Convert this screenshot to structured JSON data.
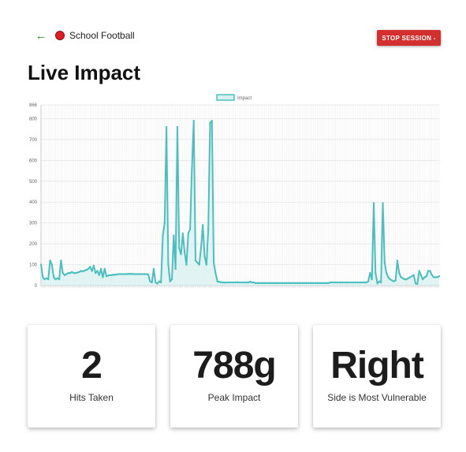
{
  "header": {
    "back_icon": "arrow-left-icon",
    "back_glyph": "←",
    "status_icon": "live-record-dot-icon",
    "session_name": "School Football",
    "stop_label": "STOP SESSION -"
  },
  "page": {
    "title": "Live Impact"
  },
  "colors": {
    "accent": "#4bbfbf",
    "accent_fill": "#d6f0f0",
    "stop": "#d32f2f",
    "back": "#2e8b2e",
    "dot": "#e31b23"
  },
  "chart_data": {
    "type": "line",
    "title": "",
    "xlabel": "",
    "ylabel": "",
    "legend": [
      "Impact"
    ],
    "legend_position": "top-center",
    "ylim": [
      0,
      866
    ],
    "y_ticks": [
      0,
      100,
      200,
      300,
      400,
      500,
      600,
      700,
      800,
      866
    ],
    "grid": true,
    "series": [
      {
        "name": "Impact",
        "values": [
          100,
          40,
          30,
          35,
          30,
          120,
          100,
          40,
          30,
          35,
          30,
          120,
          60,
          50,
          55,
          60,
          60,
          65,
          60,
          60,
          62,
          65,
          70,
          68,
          72,
          75,
          80,
          90,
          70,
          95,
          60,
          70,
          50,
          80,
          40,
          80,
          45,
          48,
          50,
          50,
          52,
          52,
          54,
          55,
          55,
          55,
          55,
          55,
          56,
          56,
          56,
          55,
          55,
          55,
          55,
          55,
          55,
          55,
          55,
          52,
          20,
          15,
          80,
          15,
          10,
          20,
          15,
          240,
          300,
          760,
          100,
          20,
          30,
          240,
          80,
          760,
          180,
          150,
          250,
          160,
          100,
          250,
          270,
          560,
          790,
          120,
          110,
          100,
          180,
          290,
          140,
          100,
          270,
          780,
          790,
          110,
          60,
          20,
          18,
          16,
          15,
          14,
          15,
          15,
          15,
          15,
          15,
          15,
          16,
          15,
          15,
          15,
          15,
          15,
          15,
          18,
          15,
          15,
          12,
          12,
          12,
          12,
          12,
          12,
          12,
          12,
          12,
          12,
          12,
          12,
          12,
          12,
          12,
          12,
          12,
          12,
          12,
          12,
          12,
          12,
          12,
          12,
          12,
          12,
          12,
          12,
          12,
          12,
          12,
          12,
          12,
          12,
          12,
          12,
          12,
          12,
          12,
          12,
          12,
          15,
          15,
          15,
          15,
          15,
          15,
          15,
          15,
          15,
          15,
          15,
          15,
          15,
          15,
          15,
          15,
          15,
          15,
          15,
          15,
          15,
          20,
          60,
          30,
          395,
          60,
          10,
          20,
          15,
          395,
          110,
          60,
          40,
          30,
          25,
          20,
          25,
          120,
          60,
          40,
          35,
          30,
          30,
          35,
          40,
          45,
          50,
          10,
          8,
          70,
          50,
          30,
          40,
          45,
          70,
          70,
          50,
          40,
          40,
          40,
          45
        ]
      }
    ]
  },
  "cards": [
    {
      "value": "2",
      "label": "Hits Taken"
    },
    {
      "value": "788g",
      "label": "Peak Impact"
    },
    {
      "value": "Right",
      "label": "Side is Most Vulnerable"
    }
  ]
}
